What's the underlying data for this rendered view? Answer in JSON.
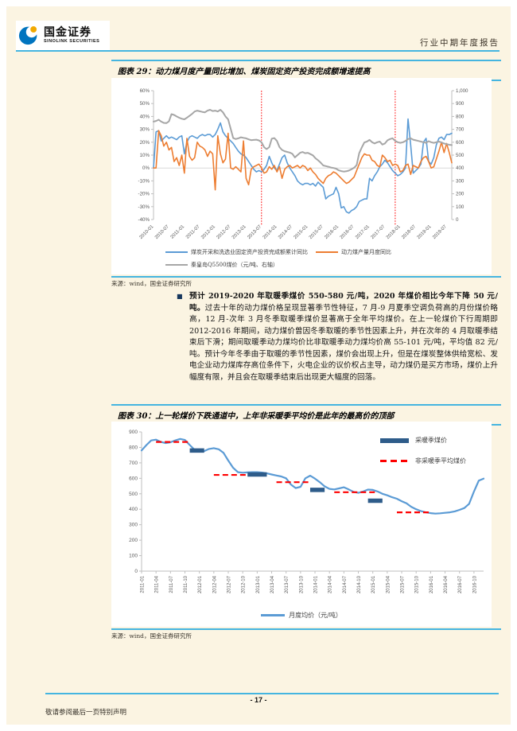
{
  "header": {
    "logo_title": "国金证券",
    "logo_subtitle": "SINOLINK SECURITIES",
    "report_type": "行业中期年度报告",
    "accent_color": "#45b5e0"
  },
  "figure29": {
    "title": "图表 29：动力煤月度产量同比增加、煤炭固定资产投资完成额增速提高",
    "source": "来源：wind，国金证券研究所"
  },
  "body": {
    "bullet_bold": "预计 2019-2020 年取暖季煤价 550-580 元/吨，2020 年煤价相比今年下降 50 元/吨。",
    "bullet_text": "过去十年的动力煤价格呈现显著季节性特征，7 月-9 月夏季空调负荷高的月份煤价略高，12 月-次年 3 月冬季取暖季煤价显著高于全年平均煤价。在上一轮煤价下行周期即 2012-2016 年期间，动力煤价曾因冬季取暖的季节性因素上升，并在次年的 4 月取暖季结束后下滑；期间取暖季动力煤均价比非取暖季动力煤均价高 55-101 元/吨，平均值 82 元/吨。预计今年冬季由于取暖的季节性因素，煤价会出现上升，但是在煤炭整体供给宽松、发电企业动力煤库存高位条件下，火电企业的议价权占主导，动力煤仍是买方市场，煤价上升幅度有限，并且会在取暖季结束后出现更大幅度的回落。"
  },
  "figure30": {
    "title": "图表 30：上一轮煤价下跌通道中，上年非采暖季平均价是此年的最高价的顶部",
    "source": "来源：wind，国金证券研究所"
  },
  "footer": {
    "page_number": "- 17 -",
    "disclaimer": "敬请参阅最后一页特别声明"
  },
  "chart_data": [
    {
      "type": "line",
      "title": "动力煤月度产量同比、煤炭固定资产投资完成额累计同比与秦皇岛Q5500煤价",
      "x_tick_labels": [
        "2010-01",
        "2010-07",
        "2011-01",
        "2011-07",
        "2012-01",
        "2012-07",
        "2013-01",
        "2013-07",
        "2014-01",
        "2014-07",
        "2015-01",
        "2015-07",
        "2016-01",
        "2016-07",
        "2017-01",
        "2017-07",
        "2018-01",
        "2018-07",
        "2019-01",
        "2019-07"
      ],
      "x_tick_every": 6,
      "left_axis": {
        "min": -40,
        "max": 60,
        "tick_labels": [
          "60%",
          "50%",
          "40%",
          "30%",
          "20%",
          "10%",
          "0%",
          "-10%",
          "-20%",
          "-30%",
          "-40%"
        ]
      },
      "right_axis": {
        "min": 0,
        "max": 1000,
        "tick_labels": [
          "1,000",
          "900",
          "800",
          "700",
          "600",
          "500",
          "400",
          "300",
          "200",
          "100",
          "0"
        ]
      },
      "grid": "zero-line-only",
      "legend_position": "bottom-left",
      "vlines": [
        {
          "index": 42,
          "label": "2013-07",
          "color": "#fe0000",
          "style": "dotted"
        },
        {
          "index": 94,
          "label": "2017-11",
          "color": "#fe0000",
          "style": "dotted"
        }
      ],
      "series": [
        {
          "name": "煤炭开采和洗选业固定资产投资完成额累计同比",
          "axis": "left",
          "unit": "%",
          "color": "#5b9bd5",
          "values": [
            0,
            28,
            29,
            21,
            23,
            25,
            23,
            24,
            23,
            22,
            24,
            25,
            11,
            20,
            24,
            25,
            24,
            23,
            25,
            26,
            25,
            26,
            26,
            24,
            26,
            30,
            35,
            28,
            25,
            23,
            21,
            19,
            16,
            13,
            11,
            10,
            8,
            5,
            2,
            -1,
            -3,
            -2,
            -3,
            -1,
            2,
            9,
            4,
            0,
            -2,
            3,
            8,
            10,
            4,
            0,
            -3,
            -6,
            -10,
            -12,
            -13,
            -12,
            -12,
            -13,
            -12,
            -14,
            -11,
            -13,
            -15,
            -24,
            -22,
            -21,
            -20,
            -15,
            -20,
            -31,
            -30,
            -34,
            -35,
            -33,
            -32,
            -30,
            -26,
            -25,
            -24,
            -24,
            -8,
            -10,
            -6,
            -3,
            1,
            3,
            6,
            4,
            1,
            -2,
            -4,
            -6,
            -5,
            -3,
            0,
            38,
            18,
            -4,
            -2,
            0,
            3,
            20,
            23,
            5,
            3,
            8,
            18,
            23,
            24,
            22,
            26,
            26,
            27
          ]
        },
        {
          "name": "动力煤产量月度同比",
          "axis": "left",
          "unit": "%",
          "color": "#ed7d31",
          "values": [
            0,
            0,
            29,
            25,
            17,
            20,
            14,
            16,
            5,
            8,
            2,
            10,
            -4,
            23,
            9,
            6,
            8,
            20,
            17,
            16,
            14,
            9,
            13,
            11,
            -17,
            25,
            11,
            4,
            7,
            27,
            0,
            -1,
            1,
            -1,
            -3,
            21,
            -8,
            -13,
            -1,
            1,
            2,
            3,
            0,
            -4,
            -3,
            1,
            -1,
            2,
            -3,
            1,
            -8,
            -1,
            1,
            2,
            0,
            1,
            2,
            0,
            2,
            1,
            -2,
            0,
            -3,
            -5,
            -8,
            -10,
            -12,
            -8,
            -6,
            -5,
            -3,
            -4,
            -6,
            -8,
            -10,
            -12,
            -11,
            -9,
            -7,
            -2,
            3,
            8,
            11,
            10,
            10,
            6,
            5,
            2,
            1,
            10,
            8,
            5,
            6,
            2,
            3,
            2,
            -3,
            -2,
            2,
            3,
            -5,
            2,
            1,
            0,
            5,
            8,
            9,
            5,
            0,
            1,
            7,
            13,
            20,
            12,
            19,
            12,
            4
          ]
        },
        {
          "name": "秦皇岛Q5500煤价（元/吨、右轴）",
          "axis": "right",
          "unit": "元/吨",
          "color": "#a6a6a6",
          "values": [
            760,
            765,
            775,
            760,
            750,
            748,
            762,
            818,
            812,
            800,
            790,
            782,
            778,
            790,
            805,
            820,
            838,
            845,
            840,
            835,
            832,
            845,
            852,
            842,
            845,
            838,
            852,
            832,
            800,
            778,
            705,
            632,
            625,
            630,
            638,
            634,
            630,
            622,
            616,
            618,
            620,
            614,
            600,
            562,
            546,
            562,
            628,
            632,
            610,
            562,
            540,
            530,
            525,
            520,
            510,
            482,
            500,
            518,
            524,
            515,
            518,
            508,
            498,
            475,
            460,
            442,
            420,
            415,
            410,
            404,
            400,
            395,
            382,
            376,
            372,
            375,
            380,
            390,
            402,
            422,
            515,
            560,
            598,
            605,
            618,
            600,
            590,
            600,
            605,
            582,
            590,
            615,
            625,
            630,
            610,
            600,
            595,
            600,
            610,
            625,
            630,
            620,
            615,
            610,
            605,
            600,
            595,
            608,
            600,
            595,
            600,
            605,
            598,
            590,
            585,
            580,
            578
          ]
        }
      ]
    },
    {
      "type": "line",
      "title": "秦皇岛Q5500月度均价与采暖季/非采暖季均价",
      "x_tick_labels": [
        "2011-01",
        "2011-04",
        "2011-07",
        "2011-10",
        "2012-01",
        "2012-04",
        "2012-07",
        "2012-10",
        "2013-01",
        "2013-04",
        "2013-07",
        "2013-10",
        "2014-01",
        "2014-04",
        "2014-07",
        "2014-10",
        "2015-01",
        "2015-04",
        "2015-07",
        "2015-10",
        "2016-01",
        "2016-04",
        "2016-07",
        "2016-10"
      ],
      "x_tick_every": 3,
      "y_axis": {
        "min": 0,
        "max": 900,
        "tick_labels": [
          "900",
          "800",
          "700",
          "600",
          "500",
          "400",
          "300",
          "200",
          "100",
          "0"
        ]
      },
      "grid": "none",
      "legend_position": "top-right",
      "series": [
        {
          "name": "月度均价（元/吨）",
          "color": "#5b9bd5",
          "values": [
            780,
            815,
            845,
            850,
            835,
            828,
            833,
            845,
            855,
            848,
            815,
            785,
            778,
            776,
            790,
            795,
            788,
            765,
            715,
            668,
            640,
            636,
            638,
            640,
            640,
            637,
            632,
            625,
            618,
            612,
            600,
            560,
            537,
            545,
            600,
            617,
            598,
            575,
            548,
            532,
            528,
            535,
            542,
            528,
            512,
            506,
            515,
            527,
            525,
            515,
            500,
            490,
            478,
            468,
            452,
            438,
            415,
            400,
            388,
            380,
            375,
            372,
            374,
            377,
            380,
            386,
            396,
            408,
            435,
            515,
            585,
            598
          ]
        }
      ],
      "heating_segments": {
        "name": "采暖季煤价",
        "color": "#2e5c8a",
        "segments": [
          [
            10,
            13,
            780
          ],
          [
            22,
            26,
            625
          ],
          [
            35,
            38,
            525
          ],
          [
            47,
            50,
            455
          ]
        ]
      },
      "non_heating_segments": {
        "name": "非采暖季平均煤价",
        "color": "#fe0000",
        "segments": [
          [
            3,
            10,
            835
          ],
          [
            15,
            23,
            622
          ],
          [
            28,
            35,
            575
          ],
          [
            40,
            49,
            510
          ],
          [
            53,
            60,
            380
          ]
        ]
      }
    }
  ]
}
